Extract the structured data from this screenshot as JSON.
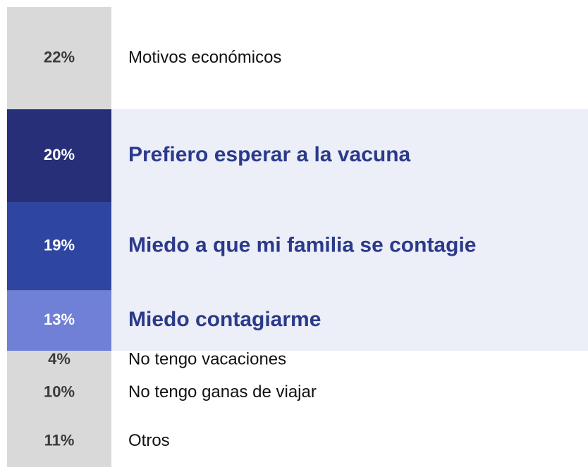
{
  "chart_data": {
    "type": "stacked-column",
    "categories": [
      "Motivos económicos",
      "Prefiero esperar a la vacuna",
      "Miedo a que mi familia se contagie",
      "Miedo contagiarme",
      "No tengo vacaciones",
      "No tengo ganas de viajar",
      "Otros"
    ],
    "values": [
      22,
      20,
      19,
      13,
      4,
      10,
      11
    ],
    "value_labels": [
      "22%",
      "20%",
      "19%",
      "13%",
      "4%",
      "10%",
      "11%"
    ],
    "colors": [
      "#d9d9d9",
      "#262f78",
      "#2f46a0",
      "#7080d6",
      "#d9d9d9",
      "#d9d9d9",
      "#d9d9d9"
    ],
    "highlighted": [
      false,
      true,
      true,
      true,
      false,
      false,
      false
    ]
  }
}
